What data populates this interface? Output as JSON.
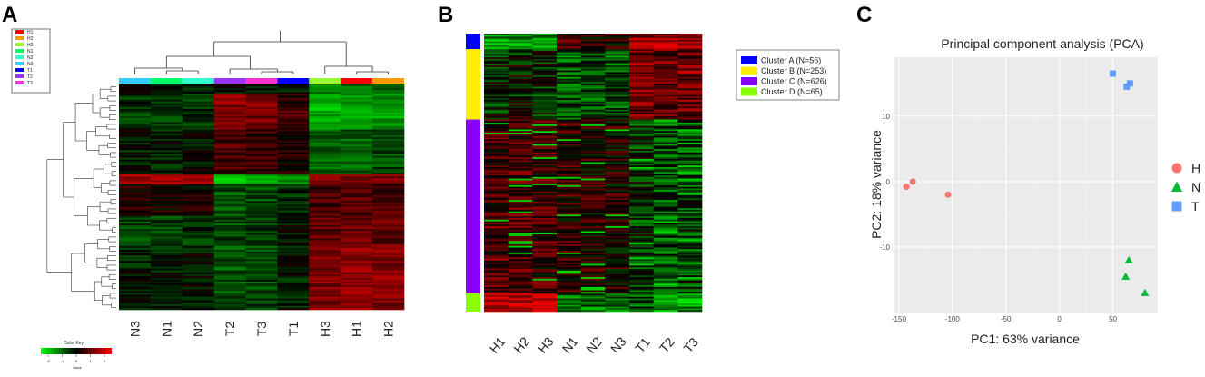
{
  "panels": {
    "a": {
      "label": "A",
      "legend": [
        "H1",
        "H2",
        "H3",
        "N1",
        "N2",
        "N3",
        "T1",
        "T2",
        "T3"
      ],
      "legend_colors": {
        "H1": "#ff0000",
        "H2": "#ff9900",
        "H3": "#99ff33",
        "N1": "#00ff66",
        "N2": "#33ffcc",
        "N3": "#33ccff",
        "T1": "#0000ff",
        "T2": "#9933ff",
        "T3": "#ff33cc"
      },
      "color_key_title": "Color Key",
      "color_key_xlabel": "Value",
      "color_key_ticks": [
        "-2",
        "-1",
        "0",
        "1",
        "2"
      ]
    },
    "b": {
      "label": "B",
      "clusters": [
        {
          "name": "Cluster A (N=56)",
          "color": "#0000ff",
          "n": 56
        },
        {
          "name": "Cluster B (N=253)",
          "color": "#ffee00",
          "n": 253
        },
        {
          "name": "Cluster C (N=626)",
          "color": "#8800ff",
          "n": 626
        },
        {
          "name": "Cluster D (N=65)",
          "color": "#88ff00",
          "n": 65
        }
      ]
    },
    "c": {
      "label": "C",
      "legend": [
        {
          "name": "H",
          "color": "#f8766d",
          "shape": "circle"
        },
        {
          "name": "N",
          "color": "#00ba38",
          "shape": "triangle"
        },
        {
          "name": "T",
          "color": "#619cff",
          "shape": "square"
        }
      ]
    }
  },
  "chart_data": [
    {
      "type": "heatmap",
      "columns": [
        "N3",
        "N1",
        "N2",
        "T2",
        "T3",
        "T1",
        "H3",
        "H1",
        "H2"
      ],
      "column_colors": [
        "#33ccff",
        "#00ff66",
        "#33ffcc",
        "#9933ff",
        "#ff33cc",
        "#0000ff",
        "#99ff33",
        "#ff0000",
        "#ff9900"
      ],
      "color_scale": {
        "low": "#00ff00",
        "mid": "#000000",
        "high": "#ff0000",
        "range": [
          -2,
          2
        ]
      }
    },
    {
      "type": "heatmap",
      "columns": [
        "H1",
        "H2",
        "H3",
        "N1",
        "N2",
        "N3",
        "T1",
        "T2",
        "T3"
      ],
      "color_scale": {
        "low": "#00ff00",
        "mid": "#000000",
        "high": "#ff0000"
      }
    },
    {
      "type": "scatter",
      "title": "Principal component analysis (PCA)",
      "xlabel": "PC1: 63% variance",
      "ylabel": "PC2: 18% variance",
      "xticks": [
        "-150",
        "-100",
        "-50",
        "0",
        "50"
      ],
      "yticks": [
        "10",
        "0",
        "-10"
      ],
      "xlim": [
        -155,
        92
      ],
      "ylim": [
        -20,
        19
      ],
      "series": [
        {
          "name": "H",
          "points": [
            [
              -143,
              -0.8
            ],
            [
              -137,
              0
            ],
            [
              -104,
              -2
            ]
          ]
        },
        {
          "name": "N",
          "points": [
            [
              65,
              -12
            ],
            [
              62,
              -14.5
            ],
            [
              80,
              -17
            ]
          ]
        },
        {
          "name": "T",
          "points": [
            [
              50,
              16.5
            ],
            [
              63,
              14.5
            ],
            [
              66,
              15
            ]
          ]
        }
      ]
    }
  ]
}
